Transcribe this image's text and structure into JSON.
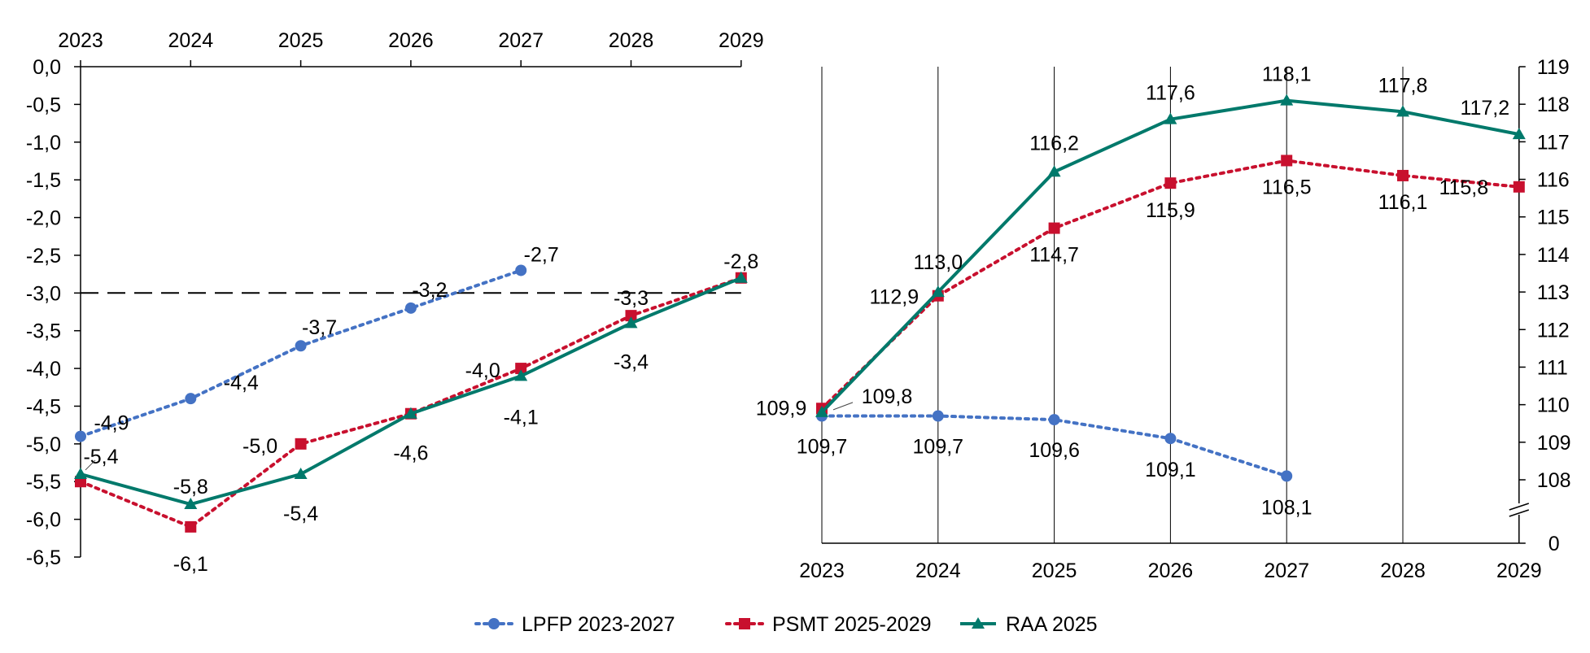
{
  "colors": {
    "lpfp": "#4472C4",
    "psmt": "#C8102E",
    "raa": "#00796B",
    "axis": "#000000",
    "threshold": "#000000"
  },
  "legend": {
    "position": "bottom-center",
    "items": [
      "LPFP 2023-2027",
      "PSMT 2025-2029",
      "RAA 2025"
    ]
  },
  "chart_data": [
    {
      "type": "line",
      "x_position": "top",
      "years": [
        "2023",
        "2024",
        "2025",
        "2026",
        "2027",
        "2028",
        "2029"
      ],
      "ylim": [
        -6.5,
        0.0
      ],
      "yticks": [
        "0,0",
        "-0,5",
        "-1,0",
        "-1,5",
        "-2,0",
        "-2,5",
        "-3,0",
        "-3,5",
        "-4,0",
        "-4,5",
        "-5,0",
        "-5,5",
        "-6,0",
        "-6,5"
      ],
      "reference_line": -3.0,
      "grid": false,
      "series": [
        {
          "name": "LPFP 2023-2027",
          "style": "dotted-circle",
          "values": [
            -4.9,
            -4.4,
            -3.7,
            -3.2,
            -2.7
          ],
          "labels": [
            "-4,9",
            "-4,4",
            "-3,7",
            "-3,2",
            "-2,7"
          ]
        },
        {
          "name": "PSMT 2025-2029",
          "style": "dotted-square",
          "values": [
            -5.5,
            -6.1,
            -5.0,
            -4.6,
            -4.0,
            -3.3,
            -2.8
          ],
          "labels": [
            "",
            "-6,1",
            "-5,0",
            "",
            "-4,0",
            "-3,3",
            "-2,8"
          ]
        },
        {
          "name": "RAA 2025",
          "style": "solid-triangle",
          "values": [
            -5.4,
            -5.8,
            -5.4,
            -4.6,
            -4.1,
            -3.4,
            -2.8
          ],
          "labels": [
            "-5,4",
            "-5,8",
            "-5,4",
            "-4,6",
            "-4,1",
            "-3,4",
            ""
          ]
        }
      ]
    },
    {
      "type": "line",
      "x_position": "bottom",
      "years": [
        "2023",
        "2024",
        "2025",
        "2026",
        "2027",
        "2028",
        "2029"
      ],
      "ylim": [
        108,
        119
      ],
      "yticks": [
        "108",
        "109",
        "110",
        "111",
        "112",
        "113",
        "114",
        "115",
        "116",
        "117",
        "118",
        "119"
      ],
      "axis_break_zero": "0",
      "grid": "vertical",
      "series": [
        {
          "name": "LPFP 2023-2027",
          "style": "dotted-circle",
          "values": [
            109.7,
            109.7,
            109.6,
            109.1,
            108.1
          ],
          "labels": [
            "109,7",
            "109,7",
            "109,6",
            "109,1",
            "108,1"
          ]
        },
        {
          "name": "PSMT 2025-2029",
          "style": "dotted-square",
          "values": [
            109.9,
            112.9,
            114.7,
            115.9,
            116.5,
            116.1,
            115.8
          ],
          "labels": [
            "109,9",
            "112,9",
            "114,7",
            "115,9",
            "116,5",
            "116,1",
            "115,8"
          ]
        },
        {
          "name": "RAA 2025",
          "style": "solid-triangle",
          "values": [
            109.8,
            113.0,
            116.2,
            117.6,
            118.1,
            117.8,
            117.2
          ],
          "labels": [
            "109,8",
            "113,0",
            "116,2",
            "117,6",
            "118,1",
            "117,8",
            "117,2"
          ]
        }
      ]
    }
  ]
}
